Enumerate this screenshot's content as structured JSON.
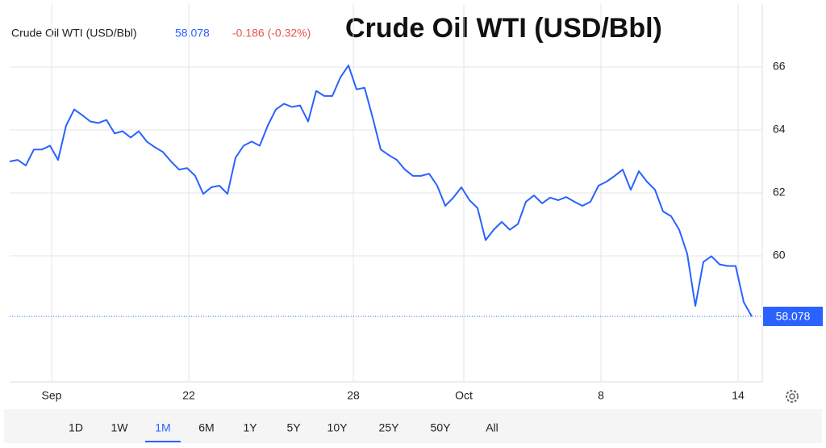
{
  "chart_data": {
    "type": "line",
    "title": "Crude Oil WTI (USD/Bbl)",
    "series": [
      {
        "name": "Crude Oil WTI (USD/Bbl)",
        "color": "#2962ff",
        "values": [
          63.0,
          63.05,
          62.87,
          63.38,
          63.38,
          63.5,
          63.05,
          64.14,
          64.65,
          64.47,
          64.27,
          64.22,
          64.32,
          63.89,
          63.96,
          63.76,
          63.96,
          63.63,
          63.45,
          63.3,
          63.0,
          62.74,
          62.79,
          62.54,
          61.97,
          62.18,
          62.23,
          61.97,
          63.12,
          63.5,
          63.63,
          63.5,
          64.14,
          64.65,
          64.83,
          64.73,
          64.78,
          64.27,
          65.24,
          65.08,
          65.08,
          65.67,
          66.05,
          65.29,
          65.34,
          64.39,
          63.38,
          63.2,
          63.05,
          62.74,
          62.54,
          62.54,
          62.61,
          62.23,
          61.59,
          61.85,
          62.18,
          61.77,
          61.52,
          60.5,
          60.83,
          61.08,
          60.83,
          61.01,
          61.72,
          61.92,
          61.67,
          61.85,
          61.77,
          61.87,
          61.72,
          61.59,
          61.72,
          62.23,
          62.36,
          62.54,
          62.74,
          62.1,
          62.69,
          62.36,
          62.1,
          61.41,
          61.26,
          60.83,
          60.06,
          58.41,
          59.81,
          59.99,
          59.73,
          59.68,
          59.68,
          58.53,
          58.078
        ]
      }
    ],
    "x": [
      0,
      1,
      2,
      3,
      4,
      5,
      6,
      7,
      8,
      9,
      10,
      11,
      12,
      13,
      14,
      15,
      16,
      17,
      18,
      19,
      20,
      21,
      22,
      23,
      24,
      25,
      26,
      27,
      28,
      29,
      30,
      31,
      32,
      33,
      34,
      35,
      36,
      37,
      38,
      39,
      40,
      41,
      42,
      43,
      44,
      45,
      46,
      47,
      48,
      49,
      50,
      51,
      52,
      53,
      54,
      55,
      56,
      57,
      58,
      59,
      60,
      61,
      62,
      63,
      64,
      65,
      66,
      67,
      68,
      69,
      70,
      71,
      72,
      73,
      74,
      75,
      76,
      77,
      78,
      79,
      80,
      81,
      82,
      83,
      84,
      85,
      86,
      87,
      88,
      89,
      90,
      91,
      92
    ],
    "xlim": [
      0,
      93.3
    ],
    "xticks": [
      {
        "value": 5.2,
        "label": "Sep"
      },
      {
        "value": 22.2,
        "label": "22"
      },
      {
        "value": 42.6,
        "label": "28"
      },
      {
        "value": 56.3,
        "label": "Oct"
      },
      {
        "value": 73.3,
        "label": "8"
      },
      {
        "value": 90.3,
        "label": "14"
      }
    ],
    "ylim": [
      56,
      68
    ],
    "yticks": [
      60,
      62,
      64,
      66
    ],
    "grid": true,
    "last_value": 58.078,
    "change_label": "-0.186 (-0.32%)",
    "ranges": [
      "1D",
      "1W",
      "1M",
      "6M",
      "1Y",
      "5Y",
      "10Y",
      "25Y",
      "50Y",
      "All"
    ],
    "active_range": "1M"
  }
}
